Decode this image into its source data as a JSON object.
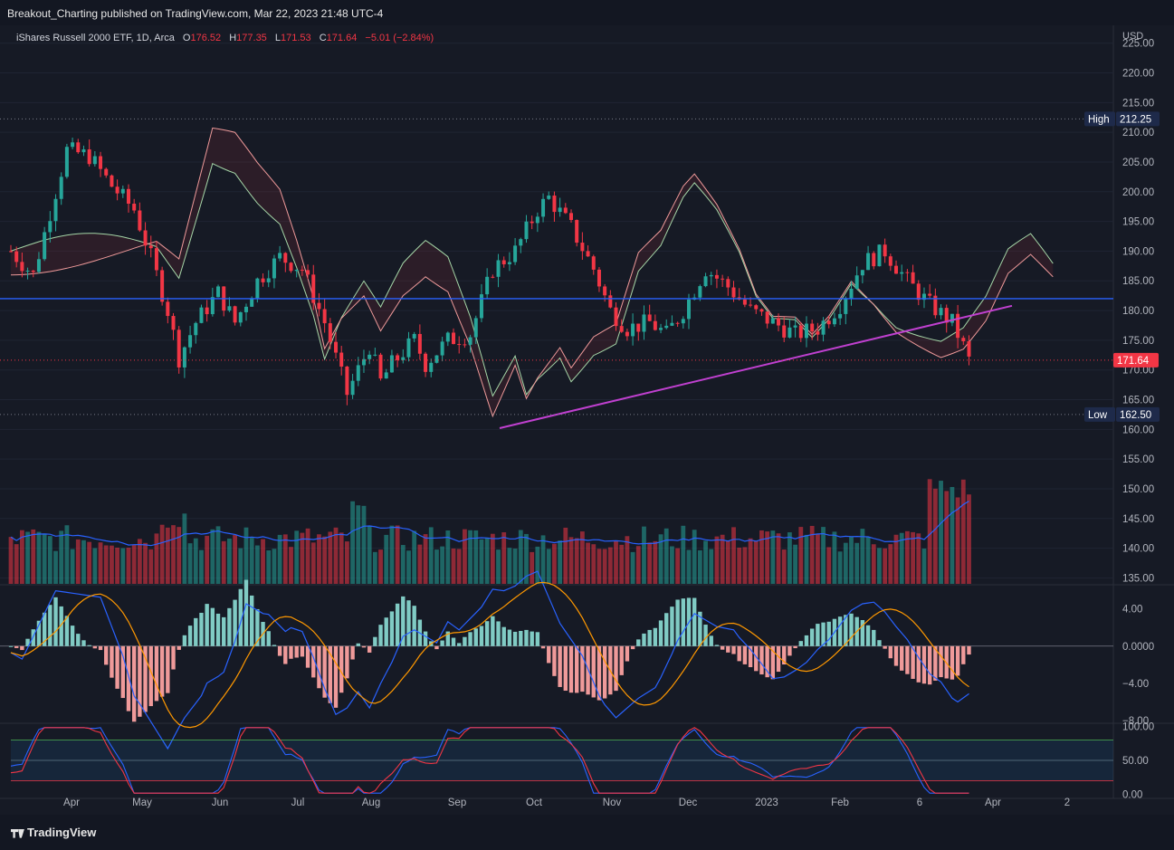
{
  "header": {
    "publisher": "Breakout_Charting published on TradingView.com, Mar 22, 2023 21:48 UTC-4"
  },
  "legend": {
    "symbol": "iShares Russell 2000 ETF, 1D, Arca",
    "o_label": "O",
    "o": "176.52",
    "h_label": "H",
    "h": "177.35",
    "l_label": "L",
    "l": "171.53",
    "c_label": "C",
    "c": "171.64",
    "change": "−5.01 (−2.84%)"
  },
  "footer": {
    "brand": "TradingView"
  },
  "colors": {
    "up": "#26a69a",
    "down": "#f23645",
    "bg": "#161a25",
    "grid": "#1f2433",
    "blue": "#2962ff",
    "purple": "#c040d0",
    "orange": "#ff9800"
  },
  "chart_data": {
    "type": "candlestick",
    "currency": "USD",
    "x_ticks": [
      "Apr",
      "May",
      "Jun",
      "Jul",
      "Aug",
      "Sep",
      "Oct",
      "Nov",
      "Dec",
      "2023",
      "Feb",
      "6",
      "Apr",
      "2"
    ],
    "price_axis": {
      "ticks": [
        "225.00",
        "220.00",
        "215.00",
        "210.00",
        "205.00",
        "200.00",
        "195.00",
        "190.00",
        "185.00",
        "180.00",
        "175.00",
        "170.00",
        "165.00",
        "160.00",
        "155.00",
        "150.00",
        "145.00",
        "140.00",
        "135.00"
      ],
      "ylim": [
        134,
        228
      ]
    },
    "high_label": {
      "text": "High",
      "value": "212.25",
      "price": 212.25
    },
    "low_label": {
      "text": "Low",
      "value": "162.50",
      "price": 162.5
    },
    "last_price": {
      "value": "171.64",
      "price": 171.64
    },
    "horizontal_line": {
      "price": 182.0,
      "color": "#2962ff"
    },
    "trendline": {
      "from_price": 160.2,
      "to_price": 180.8,
      "color": "#c040d0"
    },
    "macd_axis": {
      "ticks": [
        "4.00",
        "0.0000",
        "−4.00",
        "−8.00"
      ],
      "ylim": [
        -8.2,
        6.5
      ]
    },
    "rsi_axis": {
      "ticks": [
        "100.00",
        "50.00",
        "0.00"
      ],
      "ylim": [
        -3,
        103
      ],
      "upper": 80,
      "lower": 20,
      "mid": 50
    }
  }
}
